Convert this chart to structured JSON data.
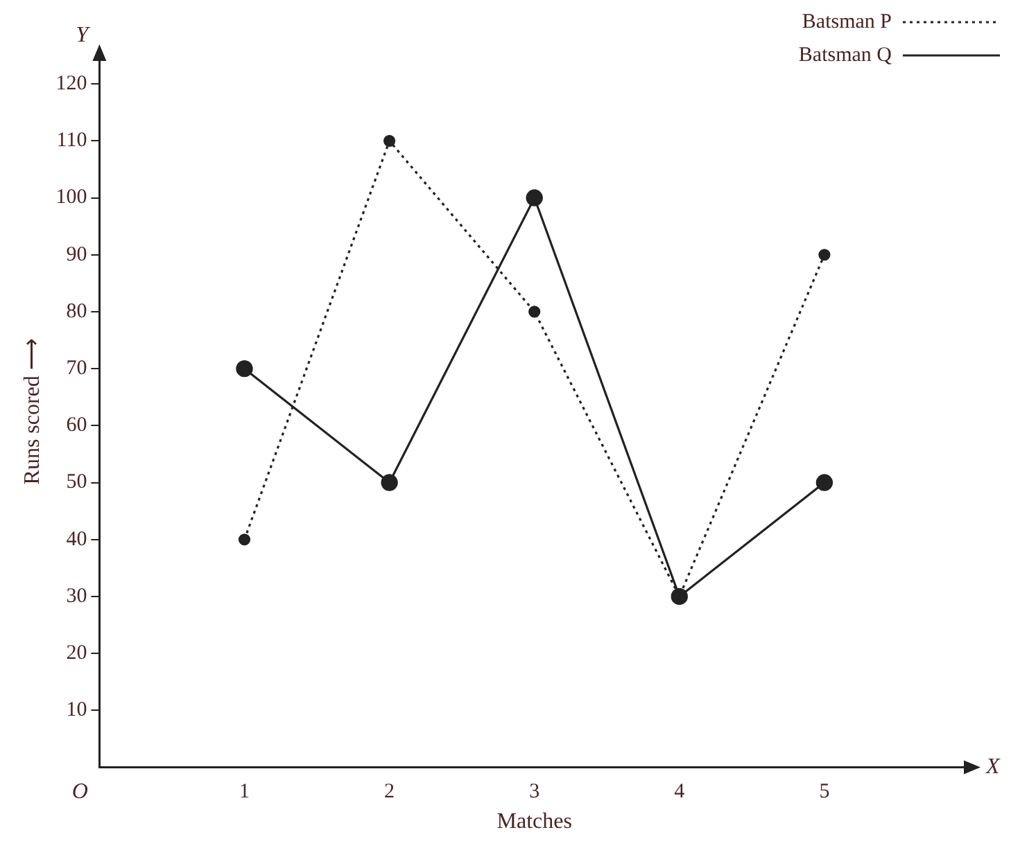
{
  "chart_data": {
    "type": "line",
    "xlabel": "Matches",
    "ylabel": "Runs scored ⟶",
    "x": [
      1,
      2,
      3,
      4,
      5
    ],
    "series": [
      {
        "name": "Batsman P",
        "color": "#222222",
        "values": [
          40,
          110,
          80,
          30,
          90
        ],
        "line_style": "dotted"
      },
      {
        "name": "Batsman Q",
        "color": "#222222",
        "values": [
          70,
          50,
          100,
          30,
          50
        ],
        "line_style": "solid"
      }
    ],
    "xlim": [
      0,
      6
    ],
    "xticks": [
      1,
      2,
      3,
      4,
      5
    ],
    "ylim": [
      0,
      125
    ],
    "yticks": [
      10,
      20,
      30,
      40,
      50,
      60,
      70,
      80,
      90,
      100,
      110,
      120
    ],
    "annotations": [
      "O",
      "X",
      "Y"
    ],
    "marker": "circle",
    "grid": false,
    "legend": "top right"
  }
}
